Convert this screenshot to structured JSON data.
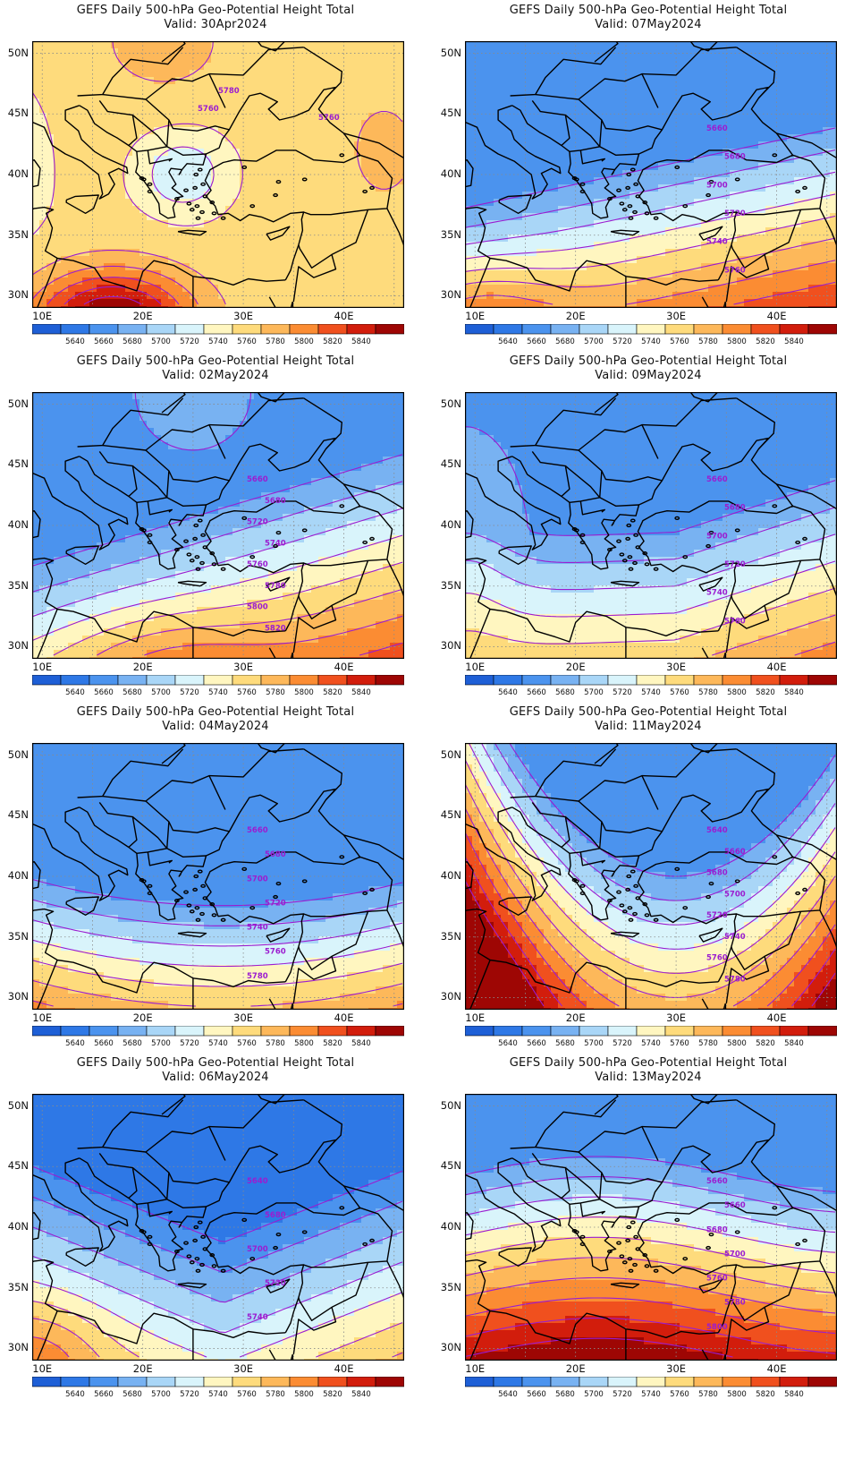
{
  "figure": {
    "title_line1": "GEFS Daily 500-hPa Geo-Potential Height Total",
    "lat_labels": [
      "50N",
      "45N",
      "40N",
      "35N",
      "30N"
    ],
    "lon_labels": [
      "10E",
      "20E",
      "30E",
      "40E"
    ],
    "colorbar": {
      "labels": [
        "5640",
        "5660",
        "5680",
        "5700",
        "5720",
        "5740",
        "5760",
        "5780",
        "5800",
        "5820",
        "5840"
      ],
      "colors": [
        "#1e5fd6",
        "#2e78e6",
        "#4b93ee",
        "#78b2f2",
        "#a9d6f7",
        "#d9f4fb",
        "#fff6c0",
        "#fedb7c",
        "#fdb85a",
        "#fb8c33",
        "#f0501e",
        "#d21d0c",
        "#9e0604"
      ]
    },
    "contour_color": "#9b1cd0",
    "border_color": "#000000"
  },
  "panels": [
    {
      "valid_label": "Valid: 30Apr2024",
      "contour_labels": [
        "5780",
        "5760",
        "5760"
      ],
      "bands": [
        {
          "level": 5840,
          "color": "#9e0604"
        }
      ]
    },
    {
      "valid_label": "Valid: 07May2024",
      "contour_labels": [
        "5660",
        "5680",
        "5700",
        "5720",
        "5740",
        "5760"
      ]
    },
    {
      "valid_label": "Valid: 02May2024",
      "contour_labels": [
        "5660",
        "5680",
        "5720",
        "5740",
        "5760",
        "5780",
        "5800",
        "5820"
      ]
    },
    {
      "valid_label": "Valid: 09May2024",
      "contour_labels": [
        "5660",
        "5680",
        "5700",
        "5720",
        "5740",
        "5760"
      ]
    },
    {
      "valid_label": "Valid: 04May2024",
      "contour_labels": [
        "5660",
        "5680",
        "5700",
        "5720",
        "5740",
        "5760",
        "5780"
      ]
    },
    {
      "valid_label": "Valid: 11May2024",
      "contour_labels": [
        "5640",
        "5660",
        "5680",
        "5700",
        "5720",
        "5740",
        "5760",
        "5780"
      ]
    },
    {
      "valid_label": "Valid: 06May2024",
      "contour_labels": [
        "5640",
        "5680",
        "5700",
        "5720",
        "5740"
      ]
    },
    {
      "valid_label": "Valid: 13May2024",
      "contour_labels": [
        "5660",
        "5660",
        "5680",
        "5700",
        "5760",
        "5780",
        "5800"
      ]
    }
  ]
}
